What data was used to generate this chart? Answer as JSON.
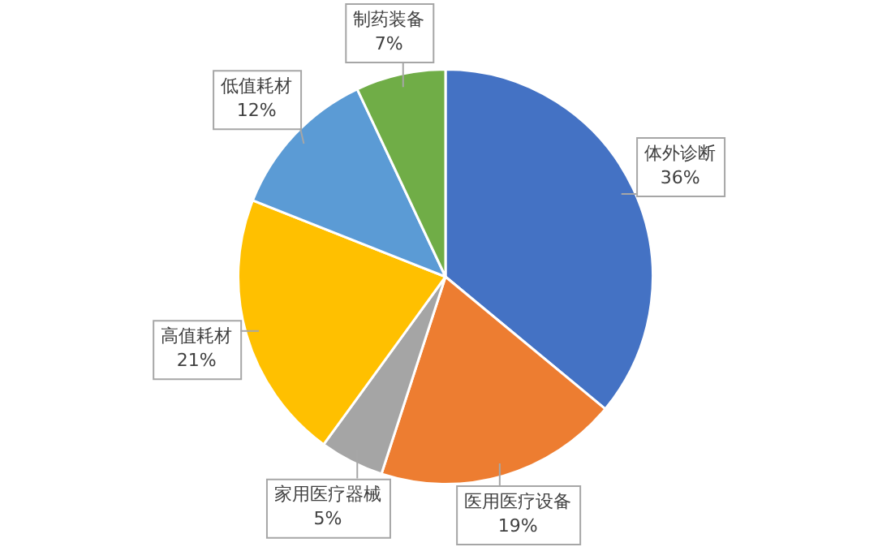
{
  "chart_data": {
    "type": "pie",
    "categories": [
      "体外诊断",
      "医用医疗设备",
      "家用医疗器械",
      "高值耗材",
      "低值耗材",
      "制药装备"
    ],
    "values": [
      36,
      19,
      5,
      21,
      12,
      7
    ],
    "colors": [
      "#4472c4",
      "#ed7d31",
      "#a5a5a5",
      "#ffc000",
      "#5b9bd5",
      "#70ad47"
    ],
    "value_labels": [
      "36%",
      "19%",
      "5%",
      "21%",
      "12%",
      "7%"
    ],
    "legend": false
  }
}
